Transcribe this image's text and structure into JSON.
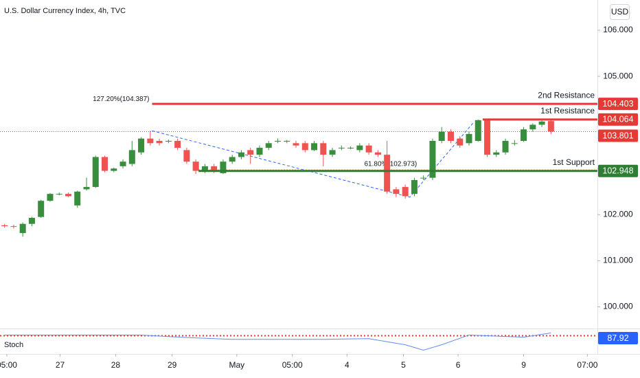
{
  "chart_data": {
    "type": "candlestick",
    "title": "U.S. Dollar Currency Index, 4h, TVC",
    "currency": "USD",
    "up_color": "#388e3c",
    "down_color": "#ef5350",
    "ylim": [
      99.5,
      106.656
    ],
    "yticks": [
      {
        "value": 100,
        "label": "100.000"
      },
      {
        "value": 101,
        "label": "101.000"
      },
      {
        "value": 102,
        "label": "102.000"
      },
      {
        "value": 103,
        "label": "103.000"
      },
      {
        "value": 104,
        "label": "104.000"
      },
      {
        "value": 105,
        "label": "105.000"
      },
      {
        "value": 106,
        "label": "106.000"
      }
    ],
    "xlim": [
      -0.5,
      65.1
    ],
    "xticks": [
      {
        "value": 0.25,
        "label": "05:00"
      },
      {
        "value": 6.1,
        "label": "27"
      },
      {
        "value": 12.2,
        "label": "28"
      },
      {
        "value": 18.4,
        "label": "29"
      },
      {
        "value": 25.5,
        "label": "May"
      },
      {
        "value": 31.6,
        "label": "05:00"
      },
      {
        "value": 37.6,
        "label": "4"
      },
      {
        "value": 43.8,
        "label": "5"
      },
      {
        "value": 49.8,
        "label": "6"
      },
      {
        "value": 57,
        "label": "9"
      },
      {
        "value": 64,
        "label": "07:00"
      }
    ],
    "ohlc": [
      [
        101.77,
        101.8,
        101.72,
        101.75
      ],
      [
        101.75,
        101.78,
        101.7,
        101.74
      ],
      [
        101.6,
        101.83,
        101.52,
        101.8
      ],
      [
        101.8,
        101.95,
        101.75,
        101.93
      ],
      [
        101.95,
        102.32,
        101.93,
        102.3
      ],
      [
        102.3,
        102.47,
        102.28,
        102.45
      ],
      [
        102.45,
        102.48,
        102.42,
        102.45
      ],
      [
        102.45,
        102.48,
        102.38,
        102.4
      ],
      [
        102.2,
        102.52,
        102.15,
        102.5
      ],
      [
        102.55,
        102.8,
        102.52,
        102.6
      ],
      [
        102.6,
        103.28,
        102.58,
        103.25
      ],
      [
        103.25,
        103.28,
        102.92,
        102.95
      ],
      [
        102.95,
        103.02,
        102.92,
        103.0
      ],
      [
        103.05,
        103.2,
        103.0,
        103.15
      ],
      [
        103.1,
        103.6,
        103.05,
        103.4
      ],
      [
        103.35,
        103.68,
        103.3,
        103.65
      ],
      [
        103.65,
        103.82,
        103.5,
        103.55
      ],
      [
        103.6,
        103.65,
        103.5,
        103.55
      ],
      [
        103.6,
        103.63,
        103.55,
        103.6
      ],
      [
        103.6,
        103.65,
        103.4,
        103.45
      ],
      [
        103.4,
        103.45,
        103.1,
        103.15
      ],
      [
        103.15,
        103.2,
        102.88,
        102.95
      ],
      [
        102.95,
        103.1,
        102.9,
        103.05
      ],
      [
        103.05,
        103.1,
        102.9,
        102.95
      ],
      [
        102.9,
        103.2,
        102.88,
        103.15
      ],
      [
        103.15,
        103.3,
        103.1,
        103.25
      ],
      [
        103.25,
        103.4,
        103.2,
        103.35
      ],
      [
        103.4,
        103.45,
        103.1,
        103.3
      ],
      [
        103.3,
        103.5,
        103.25,
        103.45
      ],
      [
        103.45,
        103.6,
        103.4,
        103.55
      ],
      [
        103.6,
        103.65,
        103.55,
        103.6
      ],
      [
        103.6,
        103.62,
        103.55,
        103.6
      ],
      [
        103.55,
        103.6,
        103.45,
        103.5
      ],
      [
        103.55,
        103.6,
        103.35,
        103.4
      ],
      [
        103.4,
        103.6,
        103.38,
        103.55
      ],
      [
        103.55,
        103.6,
        103.05,
        103.3
      ],
      [
        103.3,
        103.45,
        103.25,
        103.4
      ],
      [
        103.45,
        103.5,
        103.4,
        103.45
      ],
      [
        103.45,
        103.48,
        103.42,
        103.45
      ],
      [
        103.4,
        103.55,
        103.35,
        103.5
      ],
      [
        103.5,
        103.55,
        103.3,
        103.35
      ],
      [
        103.35,
        103.4,
        103.25,
        103.3
      ],
      [
        103.3,
        103.6,
        102.45,
        102.5
      ],
      [
        102.55,
        102.6,
        102.38,
        102.45
      ],
      [
        102.6,
        102.65,
        102.35,
        102.4
      ],
      [
        102.45,
        102.8,
        102.4,
        102.75
      ],
      [
        102.8,
        102.85,
        102.75,
        102.8
      ],
      [
        102.8,
        103.65,
        102.75,
        103.6
      ],
      [
        103.6,
        103.9,
        103.55,
        103.8
      ],
      [
        103.8,
        103.85,
        103.55,
        103.6
      ],
      [
        103.65,
        103.7,
        103.45,
        103.5
      ],
      [
        103.55,
        103.8,
        103.5,
        103.75
      ],
      [
        103.6,
        104.06,
        103.58,
        104.05
      ],
      [
        104.05,
        104.06,
        103.25,
        103.3
      ],
      [
        103.3,
        103.4,
        103.25,
        103.35
      ],
      [
        103.35,
        103.65,
        103.3,
        103.6
      ],
      [
        103.55,
        103.62,
        103.5,
        103.55
      ],
      [
        103.6,
        103.9,
        103.58,
        103.85
      ],
      [
        103.85,
        103.98,
        103.8,
        103.95
      ],
      [
        103.95,
        104.05,
        103.9,
        104.02
      ],
      [
        104.03,
        104.05,
        103.75,
        103.8
      ]
    ],
    "levels": [
      {
        "name": "2nd Resistance",
        "value": 104.403,
        "color": "#e53935",
        "from": 16.2
      },
      {
        "name": "1st Resistance",
        "value": 104.064,
        "color": "#e53935",
        "from": 52.5
      },
      {
        "name": "1st Support",
        "value": 102.948,
        "color": "#2e7d32",
        "from": 21.3
      }
    ],
    "last_price": {
      "value": 103.801,
      "color": "#e53935"
    },
    "fib_line": {
      "x": [
        16.2,
        44.5,
        51.5
      ],
      "values": [
        103.82,
        102.38,
        104.0
      ],
      "color": "#2962ff"
    },
    "fib_labels": [
      {
        "text": "127.20%(104.387)",
        "value": 104.387,
        "color": "#2962ff",
        "x": 16.2
      },
      {
        "text": "61.80%(102.973)",
        "value": 102.973,
        "color": "#f9a825",
        "x": 39.5
      }
    ],
    "stoch": {
      "name": "Stoch",
      "color": "#5b8def",
      "ylim": [
        20,
        100
      ],
      "level": 80,
      "x": [
        0,
        15,
        20,
        25,
        35,
        40,
        44,
        46,
        48,
        51,
        53,
        57,
        60
      ],
      "values": [
        82,
        82,
        75,
        70,
        70,
        72,
        55,
        40,
        55,
        82,
        80,
        76,
        87.92
      ]
    }
  }
}
